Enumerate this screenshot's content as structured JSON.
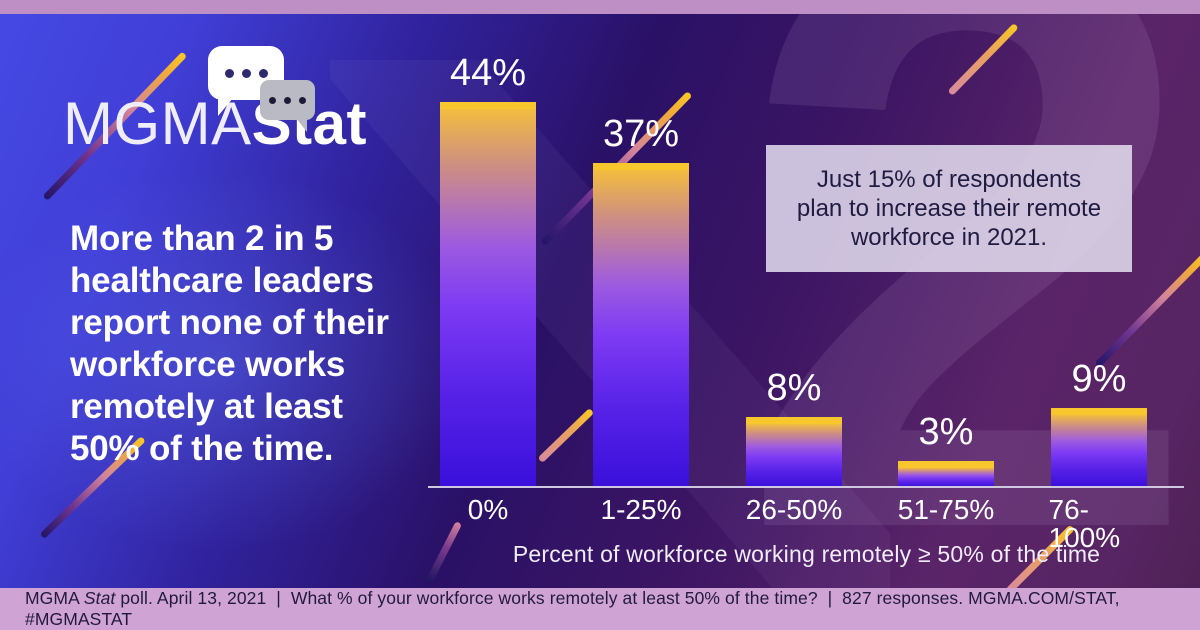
{
  "logo": {
    "mgma": "MGMA",
    "stat": "Stat",
    "icons": [
      "chat-bubble-large",
      "chat-bubble-small"
    ]
  },
  "headline": {
    "lines": [
      "More than 2 in 5",
      "healthcare leaders",
      "report none of their",
      "workforce works",
      "remotely at least",
      "50% of the time."
    ]
  },
  "callout": {
    "lines": [
      "Just 15% of respondents",
      "plan to increase their remote",
      "workforce in 2021."
    ]
  },
  "chart_data": {
    "type": "bar",
    "categories": [
      "0%",
      "1-25%",
      "26-50%",
      "51-75%",
      "76-100%"
    ],
    "values": [
      44,
      37,
      8,
      3,
      9
    ],
    "value_labels": [
      "44%",
      "37%",
      "8%",
      "3%",
      "9%"
    ],
    "title": "",
    "xlabel": "Percent of workforce working remotely ≥ 50% of the time",
    "ylabel": "",
    "ylim": [
      0,
      50
    ],
    "grid": false,
    "legend": "none",
    "bar_gradient": [
      "#f8c72e",
      "#d0917f",
      "#9d5be0",
      "#7e3bf3",
      "#3a10da"
    ]
  },
  "footer": {
    "prefix": "MGMA ",
    "italic": "Stat",
    "suffix": " poll. April 13, 2021  |  What % of your workforce works remotely at least 50% of the time?  |  827 responses. MGMA.COM/STAT, #MGMASTAT"
  },
  "colors": {
    "top_strip": "#bd8fc5",
    "footer_strip": "#cfa3d3",
    "background_left": "#4649e4",
    "background_right": "#4e2054",
    "bar_cap": "#f8c72e",
    "bar_bottom": "#3a10da",
    "callout_bg": "#e0d9ed",
    "text_light": "#ffffff",
    "text_dark": "#211a3c"
  },
  "watermark": "2"
}
